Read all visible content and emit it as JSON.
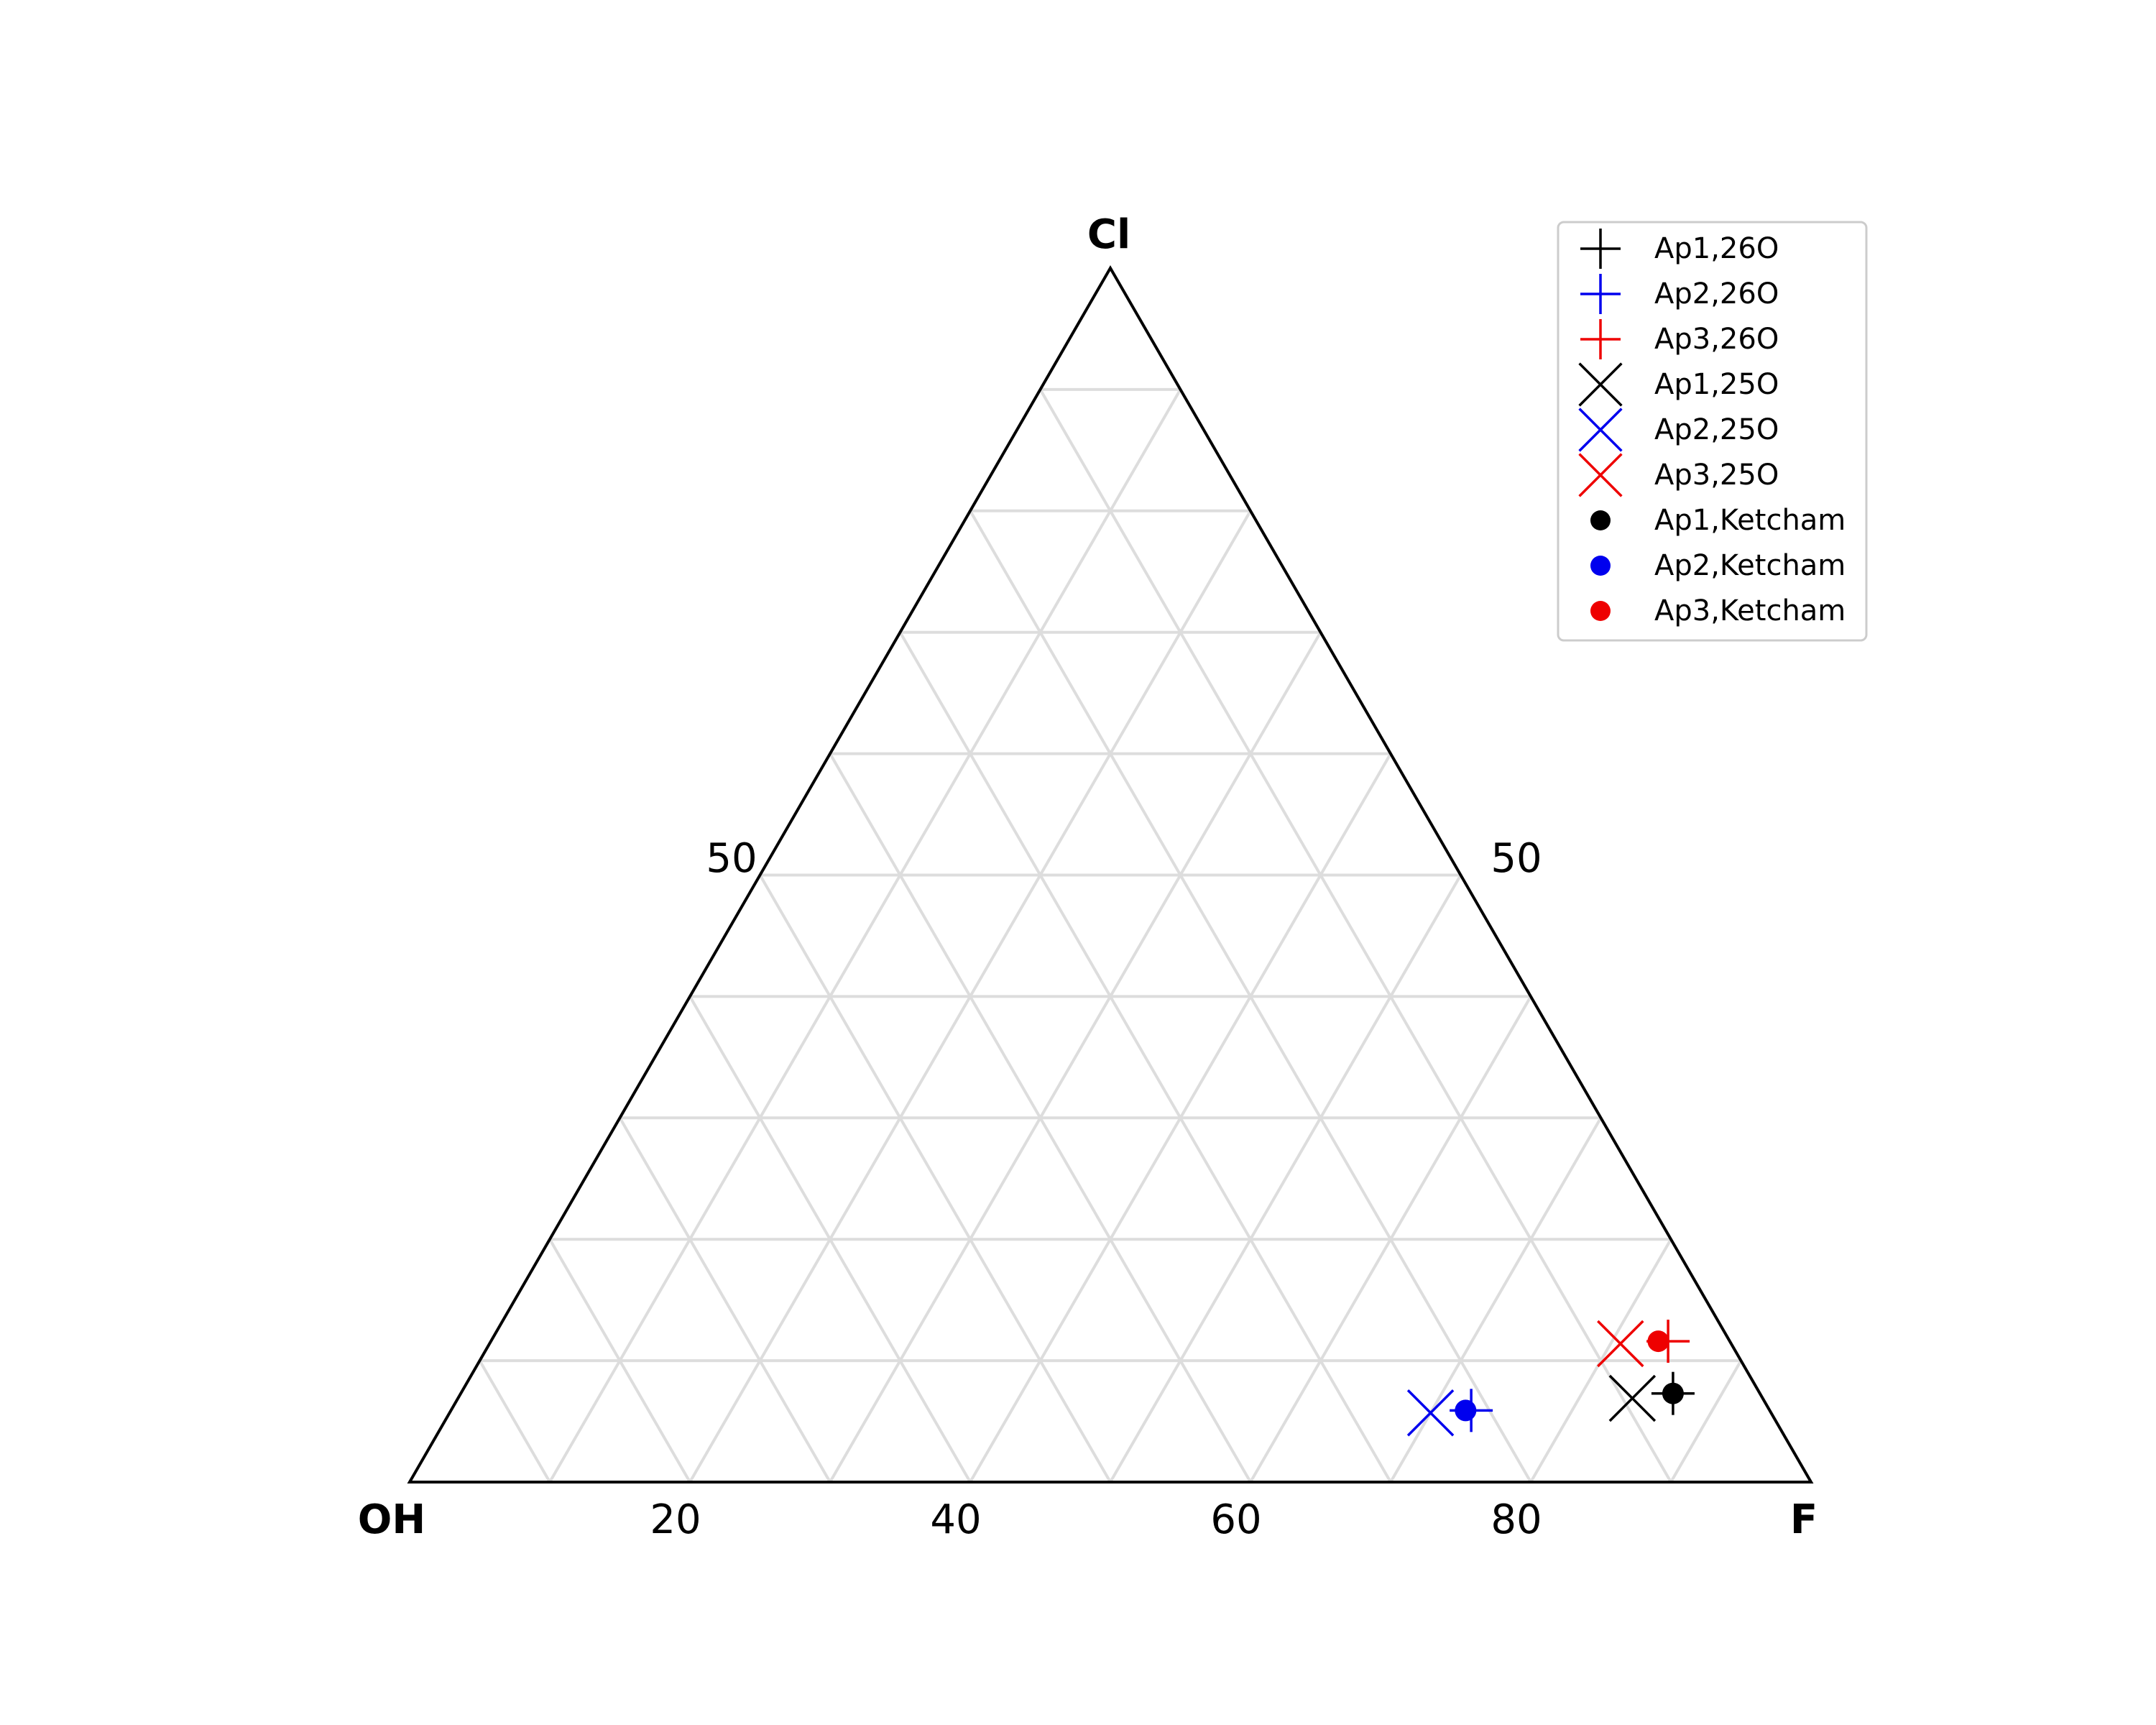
{
  "chart_data": {
    "type": "scatter",
    "subtype": "ternary",
    "axes": {
      "top": "Cl",
      "left": "OH",
      "right": "F"
    },
    "bottom_ticks": [
      "20",
      "40",
      "60",
      "80"
    ],
    "side_ticks": {
      "left": "50",
      "right": "50"
    },
    "grid": true,
    "grid_step": 10,
    "legend_position": "top-right",
    "series": [
      {
        "name": "Ap1,26O",
        "marker": "plus",
        "color": "#000000",
        "F": 86.5,
        "Cl": 7.3,
        "OH": 6.2
      },
      {
        "name": "Ap2,26O",
        "marker": "plus",
        "color": "#0000ee",
        "F": 72.8,
        "Cl": 5.9,
        "OH": 21.3
      },
      {
        "name": "Ap3,26O",
        "marker": "plus",
        "color": "#ee0000",
        "F": 84.0,
        "Cl": 11.6,
        "OH": 4.4
      },
      {
        "name": "Ap1,25O",
        "marker": "x",
        "color": "#000000",
        "F": 83.8,
        "Cl": 6.9,
        "OH": 9.3
      },
      {
        "name": "Ap2,25O",
        "marker": "x",
        "color": "#0000ee",
        "F": 70.0,
        "Cl": 5.7,
        "OH": 24.3
      },
      {
        "name": "Ap3,25O",
        "marker": "x",
        "color": "#ee0000",
        "F": 80.7,
        "Cl": 11.4,
        "OH": 7.9
      },
      {
        "name": "Ap1,Ketcham",
        "marker": "dot",
        "color": "#000000",
        "F": 86.5,
        "Cl": 7.3,
        "OH": 6.2
      },
      {
        "name": "Ap2,Ketcham",
        "marker": "dot",
        "color": "#0000ee",
        "F": 72.4,
        "Cl": 5.9,
        "OH": 21.7
      },
      {
        "name": "Ap3,Ketcham",
        "marker": "dot",
        "color": "#ee0000",
        "F": 83.3,
        "Cl": 11.6,
        "OH": 5.1
      }
    ]
  }
}
